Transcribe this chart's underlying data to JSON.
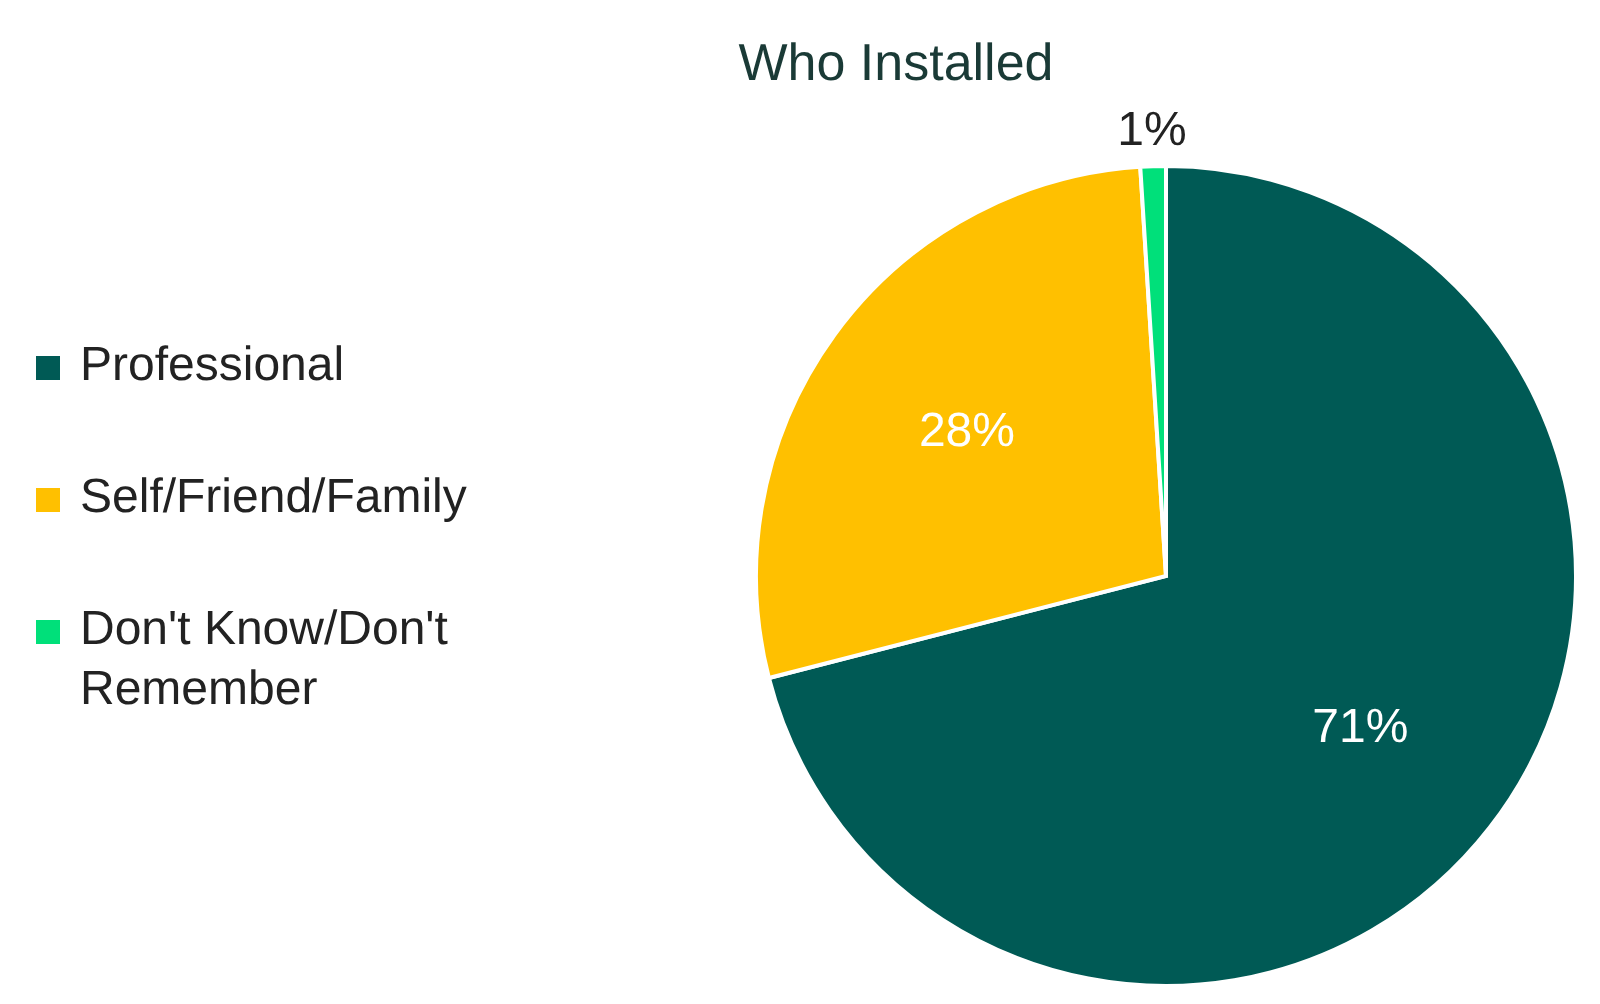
{
  "chart_data": {
    "type": "pie",
    "title": "Who Installed",
    "categories": [
      "Professional",
      "Self/Friend/Family",
      "Don't Know/Don't Remember"
    ],
    "values": [
      71,
      28,
      1
    ],
    "colors": [
      "#005a55",
      "#ffc000",
      "#00e07a"
    ],
    "value_labels": [
      "71%",
      "28%",
      "1%"
    ],
    "legend": "left"
  }
}
